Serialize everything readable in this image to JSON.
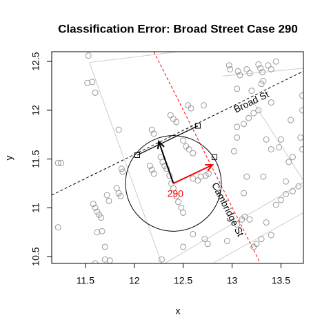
{
  "chart_data": {
    "type": "scatter",
    "title": "Classification Error: Broad Street Case 290",
    "x_label": "x",
    "y_label": "y",
    "xlim": [
      11.155,
      13.73
    ],
    "ylim": [
      10.43,
      12.6
    ],
    "xticks": [
      11.5,
      12.0,
      12.5,
      13.0,
      13.5
    ],
    "yticks": [
      10.5,
      11.0,
      11.5,
      12.0,
      12.5
    ],
    "points": {
      "color": "#999999",
      "x": [
        12.97,
        12.98,
        13.06,
        13.08,
        13.15,
        13.18,
        13.27,
        13.29,
        13.31,
        13.37,
        13.45,
        13.4,
        13.32,
        13.3,
        11.53,
        11.52,
        11.57,
        11.6,
        11.84,
        12.55,
        12.58,
        12.37,
        12.4,
        12.43,
        12.71,
        12.18,
        12.2,
        11.87,
        11.88,
        11.22,
        11.25,
        12.27,
        12.29,
        12.31,
        12.33,
        12.36,
        12.38,
        12.4,
        12.43,
        12.45,
        12.48,
        12.5,
        12.16,
        12.18,
        12.2,
        12.53,
        12.56,
        12.6,
        12.5,
        12.6,
        12.68,
        12.73,
        12.76,
        12.65,
        11.58,
        11.6,
        11.62,
        11.64,
        11.66,
        11.82,
        11.84,
        11.86,
        11.72,
        11.74,
        11.22,
        11.62,
        11.67,
        11.7,
        11.6,
        11.7,
        11.75,
        12.5,
        12.28,
        12.6,
        12.75,
        12.72,
        12.95,
        13.05,
        13.1,
        13.13,
        13.18,
        13.22,
        13.25,
        13.3,
        13.35,
        13.4,
        13.45,
        13.5,
        13.55,
        13.62,
        13.68,
        13.55,
        13.58,
        13.62,
        13.48,
        13.02,
        13.05,
        13.05,
        13.12,
        13.17,
        13.22,
        13.27,
        13.35,
        13.4,
        13.5,
        13.7,
        13.72,
        13.6,
        13.72,
        13.72,
        13.2,
        13.05,
        13.4,
        13.12,
        13.32,
        13.15
      ],
      "y": [
        12.46,
        12.42,
        12.4,
        12.36,
        12.42,
        12.38,
        12.47,
        12.43,
        12.39,
        12.46,
        12.5,
        12.42,
        12.3,
        12.27,
        12.56,
        12.28,
        12.29,
        12.18,
        11.8,
        12.05,
        12.02,
        11.95,
        11.91,
        11.88,
        12.05,
        11.8,
        11.76,
        11.4,
        11.37,
        11.46,
        11.46,
        11.52,
        11.47,
        11.43,
        11.4,
        11.33,
        11.25,
        11.2,
        11.12,
        11.06,
        11.0,
        10.95,
        11.43,
        11.39,
        11.35,
        11.63,
        11.6,
        11.56,
        11.69,
        11.3,
        11.32,
        11.33,
        11.35,
        11.28,
        11.04,
        11.0,
        10.96,
        10.93,
        10.9,
        11.2,
        11.15,
        11.12,
        11.13,
        11.07,
        10.8,
        10.75,
        10.76,
        10.6,
        10.43,
        10.47,
        10.46,
        10.6,
        10.47,
        10.73,
        10.63,
        10.68,
        10.66,
        10.83,
        10.88,
        10.91,
        10.88,
        10.6,
        10.63,
        10.68,
        10.85,
        10.72,
        11.03,
        11.08,
        11.14,
        11.17,
        11.22,
        11.27,
        11.47,
        11.52,
        11.62,
        11.58,
        11.72,
        11.83,
        11.86,
        11.92,
        11.97,
        12.0,
        11.7,
        11.6,
        11.7,
        11.72,
        11.6,
        11.9,
        12.0,
        12.15,
        12.2,
        12.22,
        12.08,
        11.15,
        11.32,
        11.32
      ]
    },
    "roads": [
      {
        "color": "#cccccc",
        "x": [
          11.54,
          12.28
        ],
        "y": [
          12.49,
          10.43
        ]
      },
      {
        "color": "#cccccc",
        "x": [
          11.54,
          12.45
        ],
        "y": [
          12.49,
          12.6
        ]
      },
      {
        "color": "#cccccc",
        "x": [
          12.31,
          13.73
        ],
        "y": [
          10.43,
          11.26
        ]
      },
      {
        "color": "#cccccc",
        "x": [
          12.8,
          13.73
        ],
        "y": [
          10.43,
          10.95
        ]
      },
      {
        "color": "#cccccc",
        "x": [
          13.22,
          13.73
        ],
        "y": [
          12.08,
          11.28
        ]
      },
      {
        "color": "#cccccc",
        "x": [
          12.9,
          13.73
        ],
        "y": [
          12.35,
          12.43
        ]
      }
    ],
    "streets": [
      {
        "color": "#000000",
        "x": [
          11.155,
          13.73
        ],
        "y": [
          11.13,
          12.4
        ]
      },
      {
        "color": "#ff0000",
        "x": [
          12.2,
          13.29
        ],
        "y": [
          12.6,
          10.43
        ]
      }
    ],
    "segment": {
      "color": "#000000",
      "x": [
        12.03,
        12.65
      ],
      "y": [
        11.54,
        11.84
      ]
    },
    "circle": {
      "x": 12.4,
      "y": 11.25,
      "r": 0.49,
      "color": "#000000"
    },
    "arrows": [
      {
        "color": "#000000",
        "x": [
          12.4,
          12.25
        ],
        "y": [
          11.25,
          11.68
        ]
      },
      {
        "color": "#ff0000",
        "x": [
          12.4,
          12.8
        ],
        "y": [
          11.25,
          11.44
        ]
      }
    ],
    "squares": {
      "color": "#000000",
      "x": [
        12.03,
        12.65,
        12.82
      ],
      "y": [
        11.54,
        11.84,
        11.52
      ]
    },
    "annotations": [
      {
        "text": "290",
        "x": 12.42,
        "y": 11.14,
        "color": "#ff0000"
      },
      {
        "text": "Broad St",
        "x": 13.2,
        "y": 12.08,
        "color": "#000000"
      },
      {
        "text": "Cambridge St",
        "x": 12.95,
        "y": 10.98,
        "color": "#000000"
      }
    ]
  }
}
